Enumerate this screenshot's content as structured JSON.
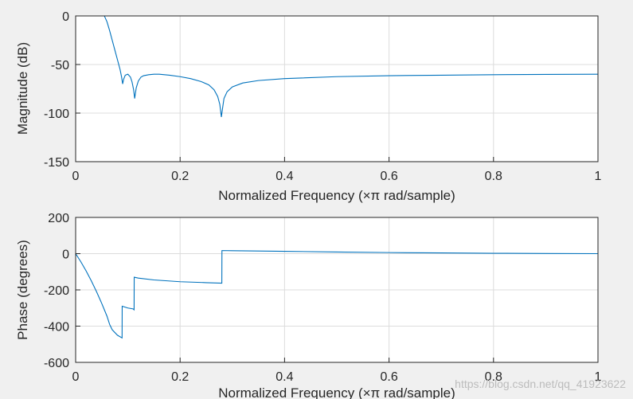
{
  "colors": {
    "figure_bg": "#f0f0f0",
    "axes_bg": "#ffffff",
    "line": "#0072bd",
    "grid": "#dcdcdc",
    "axis": "#262626",
    "watermark": "#bcbcbc"
  },
  "watermark": "https://blog.csdn.net/qq_41923622",
  "chart_data": [
    {
      "type": "line",
      "title": "",
      "xlabel": "Normalized Frequency  (×π rad/sample)",
      "ylabel": "Magnitude (dB)",
      "xlim": [
        0,
        1
      ],
      "ylim": [
        -150,
        0
      ],
      "xticks": [
        0,
        0.2,
        0.4,
        0.6,
        0.8,
        1
      ],
      "xtick_labels": [
        "0",
        "0.2",
        "0.4",
        "0.6",
        "0.8",
        "1"
      ],
      "yticks": [
        0,
        -50,
        -100,
        -150
      ],
      "ytick_labels": [
        "0",
        "-50",
        "-100",
        "-150"
      ],
      "grid": true,
      "series": [
        {
          "x": [
            0,
            0.02,
            0.04,
            0.055,
            0.06,
            0.065,
            0.07,
            0.075,
            0.08,
            0.085,
            0.088,
            0.09,
            0.092,
            0.095,
            0.1,
            0.105,
            0.108,
            0.111,
            0.113,
            0.116,
            0.12,
            0.125,
            0.13,
            0.14,
            0.15,
            0.16,
            0.18,
            0.2,
            0.22,
            0.24,
            0.255,
            0.265,
            0.272,
            0.276,
            0.279,
            0.281,
            0.284,
            0.29,
            0.3,
            0.32,
            0.35,
            0.4,
            0.5,
            0.6,
            0.7,
            0.8,
            0.9,
            1.0
          ],
          "y": [
            0,
            0,
            0,
            0,
            -6,
            -15,
            -25,
            -35,
            -45,
            -55,
            -63,
            -70,
            -65,
            -61,
            -60,
            -63,
            -68,
            -76,
            -85,
            -74,
            -67,
            -63,
            -61.5,
            -60.5,
            -60,
            -60,
            -61,
            -62.5,
            -64.5,
            -67.5,
            -71,
            -76,
            -83,
            -91,
            -104,
            -96,
            -85,
            -78,
            -73,
            -69,
            -66.5,
            -64.5,
            -62.5,
            -61.5,
            -61,
            -60.5,
            -60.2,
            -60
          ]
        }
      ]
    },
    {
      "type": "line",
      "title": "",
      "xlabel": "Normalized Frequency  (×π rad/sample)",
      "ylabel": "Phase (degrees)",
      "xlim": [
        0,
        1
      ],
      "ylim": [
        -600,
        200
      ],
      "xticks": [
        0,
        0.2,
        0.4,
        0.6,
        0.8,
        1
      ],
      "xtick_labels": [
        "0",
        "0.2",
        "0.4",
        "0.6",
        "0.8",
        "1"
      ],
      "yticks": [
        200,
        0,
        -200,
        -400,
        -600
      ],
      "ytick_labels": [
        "200",
        "0",
        "-200",
        "-400",
        "-600"
      ],
      "grid": true,
      "series": [
        {
          "x": [
            0,
            0.01,
            0.02,
            0.03,
            0.04,
            0.05,
            0.06,
            0.065,
            0.07,
            0.08,
            0.0889,
            0.0891,
            0.1,
            0.11,
            0.1119,
            0.1121,
            0.12,
            0.15,
            0.2,
            0.25,
            0.2799,
            0.2801,
            0.3,
            0.4,
            0.5,
            0.6,
            0.7,
            0.8,
            0.9,
            1.0
          ],
          "y": [
            0,
            -45,
            -95,
            -150,
            -210,
            -275,
            -345,
            -390,
            -420,
            -450,
            -465,
            -290,
            -300,
            -305,
            -310,
            -130,
            -135,
            -145,
            -155,
            -160,
            -163,
            17,
            16,
            13,
            9,
            6,
            4,
            2,
            1,
            0
          ]
        }
      ]
    }
  ]
}
